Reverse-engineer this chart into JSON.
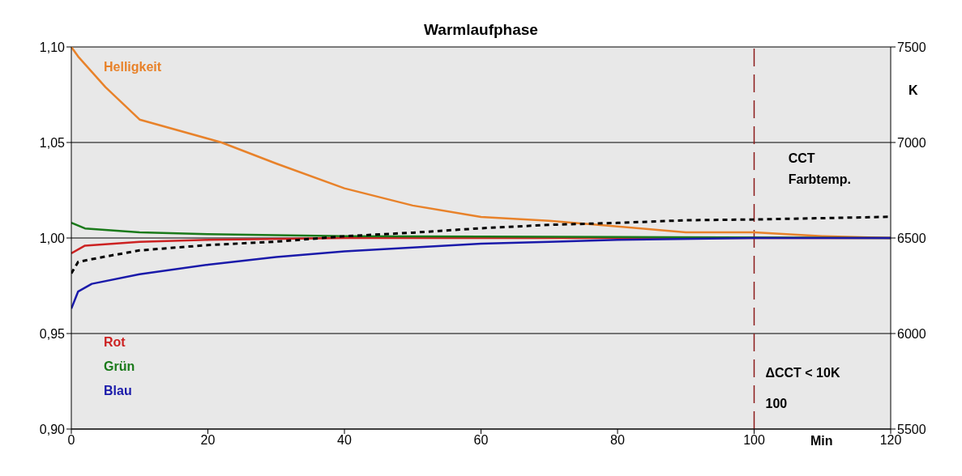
{
  "chart_data": {
    "type": "line",
    "title": "Warmlaufphase",
    "xlabel": "Min",
    "y2label": "K",
    "xlim": [
      0,
      120
    ],
    "xticks": [
      0,
      20,
      40,
      60,
      80,
      100,
      120
    ],
    "ylim": [
      0.9,
      1.1
    ],
    "yticks": [
      {
        "value": 0.9,
        "label": "0,90"
      },
      {
        "value": 0.95,
        "label": "0,95"
      },
      {
        "value": 1.0,
        "label": "1,00"
      },
      {
        "value": 1.05,
        "label": "1,05"
      },
      {
        "value": 1.1,
        "label": "1,10"
      }
    ],
    "y2lim": [
      5500,
      7500
    ],
    "y2ticks": [
      5500,
      6000,
      6500,
      7000,
      7500
    ],
    "grid": "y",
    "legend": false,
    "marker": "none",
    "series": [
      {
        "name": "Helligkeit",
        "color": "#e8822a",
        "x": [
          0,
          1,
          5,
          10,
          20,
          22,
          30,
          40,
          50,
          60,
          70,
          80,
          90,
          100,
          110,
          120
        ],
        "values": [
          1.1,
          1.095,
          1.079,
          1.062,
          1.052,
          1.05,
          1.039,
          1.026,
          1.017,
          1.011,
          1.009,
          1.006,
          1.003,
          1.003,
          1.001,
          1.0
        ]
      },
      {
        "name": "Rot",
        "color": "#cc2222",
        "x": [
          0,
          2,
          10,
          20,
          40,
          120
        ],
        "values": [
          0.992,
          0.996,
          0.998,
          0.999,
          1.0,
          1.0
        ]
      },
      {
        "name": "Grün",
        "color": "#1a7a1a",
        "x": [
          0,
          2,
          10,
          20,
          40,
          120
        ],
        "values": [
          1.008,
          1.005,
          1.003,
          1.002,
          1.001,
          1.0
        ]
      },
      {
        "name": "Blau",
        "color": "#1a1aaa",
        "x": [
          0,
          1,
          3,
          10,
          20,
          30,
          40,
          50,
          60,
          70,
          80,
          100,
          120
        ],
        "values": [
          0.963,
          0.972,
          0.976,
          0.981,
          0.986,
          0.99,
          0.993,
          0.995,
          0.997,
          0.998,
          0.999,
          1.0,
          1.0
        ]
      },
      {
        "name": "CCT Farbtemp.",
        "color": "#000000",
        "axis": "y2",
        "line_style": "dashed",
        "x": [
          0,
          1,
          5,
          10,
          20,
          30,
          40,
          50,
          60,
          70,
          80,
          90,
          100,
          120
        ],
        "values": [
          6315,
          6375,
          6403,
          6435,
          6463,
          6481,
          6509,
          6528,
          6551,
          6569,
          6579,
          6593,
          6597,
          6611
        ]
      }
    ],
    "ref_lines": [
      {
        "axis": "x",
        "value": 100,
        "label": "100",
        "color": "#8b1a1a",
        "line_style": "dashed"
      }
    ],
    "annotations": [
      "ΔCCT < 10K"
    ]
  }
}
